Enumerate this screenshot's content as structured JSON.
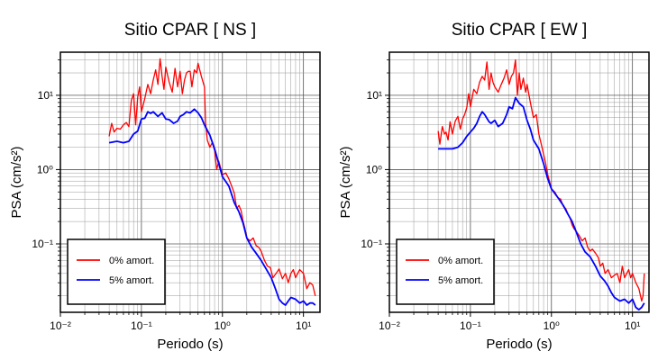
{
  "chart_data": [
    {
      "type": "line",
      "title": "Sitio CPAR [ NS ]",
      "xlabel": "Periodo (s)",
      "ylabel": "PSA (cm/s²)",
      "xscale": "log",
      "yscale": "log",
      "xlim": [
        0.01,
        16
      ],
      "ylim": [
        0.012,
        38
      ],
      "x_ticks": [
        "10⁻²",
        "10⁻¹",
        "10⁰",
        "10¹"
      ],
      "y_ticks": [
        "10⁻¹",
        "10⁰",
        "10¹"
      ],
      "grid": true,
      "legend_position": "bottom-left",
      "series": [
        {
          "name": "0% amort.",
          "color": "#ff0000",
          "points": [
            [
              0.04,
              2.8
            ],
            [
              0.043,
              4.2
            ],
            [
              0.046,
              3.2
            ],
            [
              0.05,
              3.6
            ],
            [
              0.055,
              3.5
            ],
            [
              0.06,
              4.0
            ],
            [
              0.065,
              4.3
            ],
            [
              0.07,
              3.8
            ],
            [
              0.075,
              8.5
            ],
            [
              0.08,
              10.5
            ],
            [
              0.085,
              4.0
            ],
            [
              0.09,
              9.5
            ],
            [
              0.095,
              13.0
            ],
            [
              0.1,
              6.0
            ],
            [
              0.11,
              9.0
            ],
            [
              0.12,
              14.0
            ],
            [
              0.13,
              10.5
            ],
            [
              0.14,
              16.0
            ],
            [
              0.15,
              22.0
            ],
            [
              0.16,
              14.0
            ],
            [
              0.17,
              31.0
            ],
            [
              0.18,
              18.0
            ],
            [
              0.19,
              12.0
            ],
            [
              0.2,
              24.0
            ],
            [
              0.22,
              15.0
            ],
            [
              0.24,
              11.0
            ],
            [
              0.26,
              23.0
            ],
            [
              0.28,
              13.0
            ],
            [
              0.3,
              21.0
            ],
            [
              0.32,
              10.5
            ],
            [
              0.34,
              16.0
            ],
            [
              0.36,
              20.0
            ],
            [
              0.38,
              21.0
            ],
            [
              0.4,
              21.0
            ],
            [
              0.42,
              13.0
            ],
            [
              0.45,
              22.0
            ],
            [
              0.48,
              20.0
            ],
            [
              0.5,
              27.0
            ],
            [
              0.55,
              18.0
            ],
            [
              0.6,
              13.0
            ],
            [
              0.62,
              4.2
            ],
            [
              0.65,
              2.5
            ],
            [
              0.7,
              2.0
            ],
            [
              0.75,
              2.3
            ],
            [
              0.8,
              1.8
            ],
            [
              0.85,
              1.0
            ],
            [
              0.9,
              1.3
            ],
            [
              1.0,
              0.85
            ],
            [
              1.1,
              0.9
            ],
            [
              1.2,
              0.75
            ],
            [
              1.3,
              0.6
            ],
            [
              1.4,
              0.48
            ],
            [
              1.5,
              0.3
            ],
            [
              1.6,
              0.33
            ],
            [
              1.7,
              0.28
            ],
            [
              1.8,
              0.2
            ],
            [
              1.9,
              0.16
            ],
            [
              2.0,
              0.12
            ],
            [
              2.2,
              0.11
            ],
            [
              2.4,
              0.12
            ],
            [
              2.6,
              0.095
            ],
            [
              2.8,
              0.09
            ],
            [
              3.0,
              0.08
            ],
            [
              3.3,
              0.06
            ],
            [
              3.6,
              0.05
            ],
            [
              3.9,
              0.048
            ],
            [
              4.2,
              0.035
            ],
            [
              4.6,
              0.04
            ],
            [
              5.0,
              0.046
            ],
            [
              5.5,
              0.034
            ],
            [
              6.0,
              0.04
            ],
            [
              6.5,
              0.03
            ],
            [
              7.0,
              0.04
            ],
            [
              7.5,
              0.045
            ],
            [
              8.0,
              0.035
            ],
            [
              8.5,
              0.04
            ],
            [
              9.0,
              0.045
            ],
            [
              10.0,
              0.04
            ],
            [
              11.0,
              0.025
            ],
            [
              12.0,
              0.03
            ],
            [
              13.0,
              0.028
            ],
            [
              14.0,
              0.02
            ]
          ]
        },
        {
          "name": "5% amort.",
          "color": "#0000ff",
          "points": [
            [
              0.04,
              2.3
            ],
            [
              0.05,
              2.4
            ],
            [
              0.06,
              2.3
            ],
            [
              0.07,
              2.4
            ],
            [
              0.08,
              3.0
            ],
            [
              0.09,
              3.3
            ],
            [
              0.1,
              4.8
            ],
            [
              0.11,
              4.9
            ],
            [
              0.12,
              6.0
            ],
            [
              0.13,
              5.7
            ],
            [
              0.14,
              6.0
            ],
            [
              0.16,
              5.2
            ],
            [
              0.18,
              5.8
            ],
            [
              0.2,
              4.8
            ],
            [
              0.22,
              4.7
            ],
            [
              0.25,
              4.2
            ],
            [
              0.28,
              4.5
            ],
            [
              0.3,
              5.2
            ],
            [
              0.33,
              5.5
            ],
            [
              0.36,
              6.0
            ],
            [
              0.4,
              5.8
            ],
            [
              0.45,
              6.5
            ],
            [
              0.5,
              5.8
            ],
            [
              0.55,
              5.0
            ],
            [
              0.6,
              4.0
            ],
            [
              0.7,
              2.9
            ],
            [
              0.8,
              1.9
            ],
            [
              0.9,
              1.2
            ],
            [
              1.0,
              0.8
            ],
            [
              1.2,
              0.6
            ],
            [
              1.4,
              0.36
            ],
            [
              1.6,
              0.27
            ],
            [
              1.8,
              0.19
            ],
            [
              2.0,
              0.12
            ],
            [
              2.3,
              0.09
            ],
            [
              2.6,
              0.075
            ],
            [
              3.0,
              0.06
            ],
            [
              3.5,
              0.045
            ],
            [
              4.0,
              0.035
            ],
            [
              4.5,
              0.025
            ],
            [
              5.0,
              0.018
            ],
            [
              5.5,
              0.016
            ],
            [
              6.0,
              0.015
            ],
            [
              6.5,
              0.017
            ],
            [
              7.0,
              0.019
            ],
            [
              8.0,
              0.018
            ],
            [
              9.0,
              0.016
            ],
            [
              10.0,
              0.017
            ],
            [
              11.0,
              0.015
            ],
            [
              12.0,
              0.016
            ],
            [
              13.0,
              0.016
            ],
            [
              14.0,
              0.015
            ]
          ]
        }
      ]
    },
    {
      "type": "line",
      "title": "Sitio CPAR [ EW ]",
      "xlabel": "Periodo (s)",
      "ylabel": "PSA (cm/s²)",
      "xscale": "log",
      "yscale": "log",
      "xlim": [
        0.01,
        16
      ],
      "ylim": [
        0.012,
        38
      ],
      "x_ticks": [
        "10⁻²",
        "10⁻¹",
        "10⁰",
        "10¹"
      ],
      "y_ticks": [
        "10⁻¹",
        "10⁰",
        "10¹"
      ],
      "grid": true,
      "legend_position": "bottom-left",
      "series": [
        {
          "name": "0% amort.",
          "color": "#ff0000",
          "points": [
            [
              0.04,
              3.3
            ],
            [
              0.042,
              2.2
            ],
            [
              0.045,
              3.8
            ],
            [
              0.048,
              3.0
            ],
            [
              0.05,
              3.2
            ],
            [
              0.053,
              2.5
            ],
            [
              0.056,
              4.4
            ],
            [
              0.06,
              3.0
            ],
            [
              0.065,
              4.5
            ],
            [
              0.07,
              5.2
            ],
            [
              0.075,
              3.5
            ],
            [
              0.08,
              4.8
            ],
            [
              0.085,
              5.5
            ],
            [
              0.09,
              6.8
            ],
            [
              0.095,
              10.5
            ],
            [
              0.1,
              7.0
            ],
            [
              0.11,
              12.0
            ],
            [
              0.12,
              10.5
            ],
            [
              0.13,
              15.0
            ],
            [
              0.14,
              18.0
            ],
            [
              0.15,
              16.0
            ],
            [
              0.16,
              28.0
            ],
            [
              0.17,
              12.0
            ],
            [
              0.18,
              20.0
            ],
            [
              0.19,
              15.0
            ],
            [
              0.2,
              13.0
            ],
            [
              0.22,
              11.0
            ],
            [
              0.24,
              14.0
            ],
            [
              0.26,
              17.0
            ],
            [
              0.28,
              22.0
            ],
            [
              0.3,
              14.0
            ],
            [
              0.32,
              18.0
            ],
            [
              0.34,
              20.0
            ],
            [
              0.36,
              30.0
            ],
            [
              0.38,
              10.0
            ],
            [
              0.4,
              20.0
            ],
            [
              0.42,
              12.0
            ],
            [
              0.45,
              17.0
            ],
            [
              0.48,
              11.0
            ],
            [
              0.5,
              14.0
            ],
            [
              0.55,
              8.0
            ],
            [
              0.6,
              5.0
            ],
            [
              0.65,
              5.5
            ],
            [
              0.7,
              3.0
            ],
            [
              0.75,
              2.2
            ],
            [
              0.8,
              1.6
            ],
            [
              0.85,
              1.2
            ],
            [
              0.9,
              0.85
            ],
            [
              1.0,
              0.55
            ],
            [
              1.1,
              0.5
            ],
            [
              1.2,
              0.42
            ],
            [
              1.3,
              0.4
            ],
            [
              1.4,
              0.32
            ],
            [
              1.5,
              0.3
            ],
            [
              1.6,
              0.25
            ],
            [
              1.7,
              0.22
            ],
            [
              1.8,
              0.18
            ],
            [
              1.9,
              0.16
            ],
            [
              2.0,
              0.15
            ],
            [
              2.2,
              0.13
            ],
            [
              2.4,
              0.11
            ],
            [
              2.6,
              0.12
            ],
            [
              2.8,
              0.09
            ],
            [
              3.0,
              0.08
            ],
            [
              3.2,
              0.085
            ],
            [
              3.5,
              0.075
            ],
            [
              3.8,
              0.065
            ],
            [
              4.0,
              0.05
            ],
            [
              4.3,
              0.055
            ],
            [
              4.6,
              0.04
            ],
            [
              5.0,
              0.045
            ],
            [
              5.5,
              0.035
            ],
            [
              6.0,
              0.038
            ],
            [
              6.5,
              0.04
            ],
            [
              7.0,
              0.03
            ],
            [
              7.5,
              0.05
            ],
            [
              8.0,
              0.035
            ],
            [
              8.5,
              0.04
            ],
            [
              9.0,
              0.045
            ],
            [
              9.5,
              0.035
            ],
            [
              10.0,
              0.04
            ],
            [
              11.0,
              0.03
            ],
            [
              12.0,
              0.025
            ],
            [
              13.0,
              0.017
            ],
            [
              13.5,
              0.02
            ],
            [
              14.0,
              0.04
            ]
          ]
        },
        {
          "name": "5% amort.",
          "color": "#0000ff",
          "points": [
            [
              0.04,
              1.9
            ],
            [
              0.05,
              1.9
            ],
            [
              0.06,
              1.9
            ],
            [
              0.07,
              2.0
            ],
            [
              0.08,
              2.3
            ],
            [
              0.09,
              2.8
            ],
            [
              0.1,
              3.2
            ],
            [
              0.11,
              3.6
            ],
            [
              0.12,
              4.2
            ],
            [
              0.13,
              5.2
            ],
            [
              0.14,
              6.0
            ],
            [
              0.15,
              5.5
            ],
            [
              0.16,
              4.9
            ],
            [
              0.17,
              4.4
            ],
            [
              0.18,
              4.2
            ],
            [
              0.2,
              4.6
            ],
            [
              0.22,
              3.8
            ],
            [
              0.25,
              4.2
            ],
            [
              0.28,
              5.5
            ],
            [
              0.3,
              7.0
            ],
            [
              0.33,
              6.6
            ],
            [
              0.36,
              9.3
            ],
            [
              0.4,
              7.8
            ],
            [
              0.45,
              7.0
            ],
            [
              0.5,
              4.6
            ],
            [
              0.55,
              3.5
            ],
            [
              0.6,
              2.5
            ],
            [
              0.7,
              1.9
            ],
            [
              0.8,
              1.2
            ],
            [
              0.9,
              0.75
            ],
            [
              1.0,
              0.55
            ],
            [
              1.2,
              0.42
            ],
            [
              1.4,
              0.33
            ],
            [
              1.6,
              0.25
            ],
            [
              1.8,
              0.2
            ],
            [
              2.0,
              0.15
            ],
            [
              2.3,
              0.1
            ],
            [
              2.6,
              0.078
            ],
            [
              3.0,
              0.067
            ],
            [
              3.5,
              0.05
            ],
            [
              4.0,
              0.037
            ],
            [
              4.5,
              0.032
            ],
            [
              5.0,
              0.027
            ],
            [
              5.5,
              0.022
            ],
            [
              6.0,
              0.019
            ],
            [
              7.0,
              0.017
            ],
            [
              8.0,
              0.018
            ],
            [
              9.0,
              0.016
            ],
            [
              10.0,
              0.018
            ],
            [
              11.0,
              0.014
            ],
            [
              12.0,
              0.013
            ],
            [
              13.0,
              0.014
            ],
            [
              14.0,
              0.016
            ]
          ]
        }
      ]
    }
  ]
}
